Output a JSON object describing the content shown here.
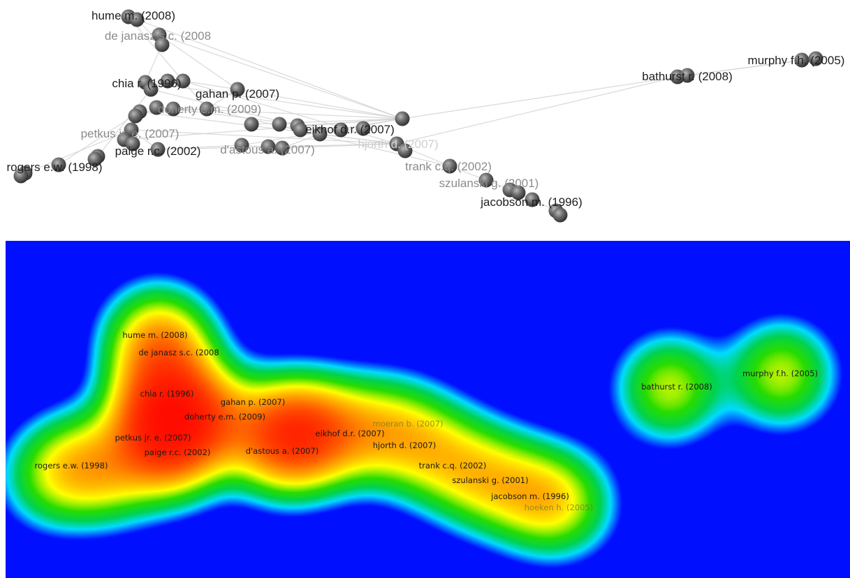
{
  "network_view": {
    "labels": [
      {
        "id": "hume",
        "text": "hume m. (2008)",
        "tone": "dark"
      },
      {
        "id": "dejanasz",
        "text": "de janasz s.c. (2008",
        "tone": "light"
      },
      {
        "id": "chia",
        "text": "chia r. (1996)",
        "tone": "dark"
      },
      {
        "id": "gahan",
        "text": "gahan p. (2007)",
        "tone": "dark"
      },
      {
        "id": "doherty",
        "text": "doherty e.m. (2009)",
        "tone": "light"
      },
      {
        "id": "petkus",
        "text": "petkus jr. e. (2007)",
        "tone": "light"
      },
      {
        "id": "paige",
        "text": "paige r.c. (2002)",
        "tone": "dark"
      },
      {
        "id": "rogers",
        "text": "rogers e.w. (1998)",
        "tone": "dark"
      },
      {
        "id": "dastous",
        "text": "d'astous a. (2007)",
        "tone": "light"
      },
      {
        "id": "eikhof",
        "text": "eikhof d.r. (2007)",
        "tone": "dark"
      },
      {
        "id": "hjorth",
        "text": "hjorth d. (2007)",
        "tone": "faint"
      },
      {
        "id": "trank",
        "text": "trank c.q. (2002)",
        "tone": "light"
      },
      {
        "id": "szulanski",
        "text": "szulanski g. (2001)",
        "tone": "light"
      },
      {
        "id": "jacobson",
        "text": "jacobson m. (1996)",
        "tone": "dark"
      },
      {
        "id": "bathurst",
        "text": "bathurst r. (2008)",
        "tone": "dark"
      },
      {
        "id": "murphy",
        "text": "murphy f.h. (2005)",
        "tone": "dark"
      }
    ]
  },
  "density_view": {
    "colors": {
      "background": "#0010ff",
      "low": "#00e8ff",
      "mid": "#00dd00",
      "high": "#ffff00",
      "peak": "#ff0000"
    },
    "labels": [
      {
        "id": "hume",
        "text": "hume m. (2008)",
        "tone": "dark"
      },
      {
        "id": "dejanasz",
        "text": "de janasz s.c. (2008",
        "tone": "dark"
      },
      {
        "id": "chia",
        "text": "chia r. (1996)",
        "tone": "dark"
      },
      {
        "id": "gahan",
        "text": "gahan p. (2007)",
        "tone": "dark"
      },
      {
        "id": "doherty",
        "text": "doherty e.m. (2009)",
        "tone": "dark"
      },
      {
        "id": "petkus",
        "text": "petkus jr. e. (2007)",
        "tone": "dark"
      },
      {
        "id": "paige",
        "text": "paige r.c. (2002)",
        "tone": "dark"
      },
      {
        "id": "rogers",
        "text": "rogers e.w. (1998)",
        "tone": "dark"
      },
      {
        "id": "dastous",
        "text": "d'astous a. (2007)",
        "tone": "dark"
      },
      {
        "id": "eikhof",
        "text": "eikhof d.r. (2007)",
        "tone": "dark"
      },
      {
        "id": "moeran",
        "text": "moeran b. (2007)",
        "tone": "faint"
      },
      {
        "id": "hjorth",
        "text": "hjorth d. (2007)",
        "tone": "dark"
      },
      {
        "id": "trank",
        "text": "trank c.q. (2002)",
        "tone": "dark"
      },
      {
        "id": "szulanski",
        "text": "szulanski g. (2001)",
        "tone": "dark"
      },
      {
        "id": "jacobson",
        "text": "jacobson m. (1996)",
        "tone": "dark"
      },
      {
        "id": "hoeken",
        "text": "hoeken h. (2005)",
        "tone": "faint"
      },
      {
        "id": "bathurst",
        "text": "bathurst r. (2008)",
        "tone": "dark"
      },
      {
        "id": "murphy",
        "text": "murphy f.h. (2005)",
        "tone": "dark"
      }
    ]
  }
}
